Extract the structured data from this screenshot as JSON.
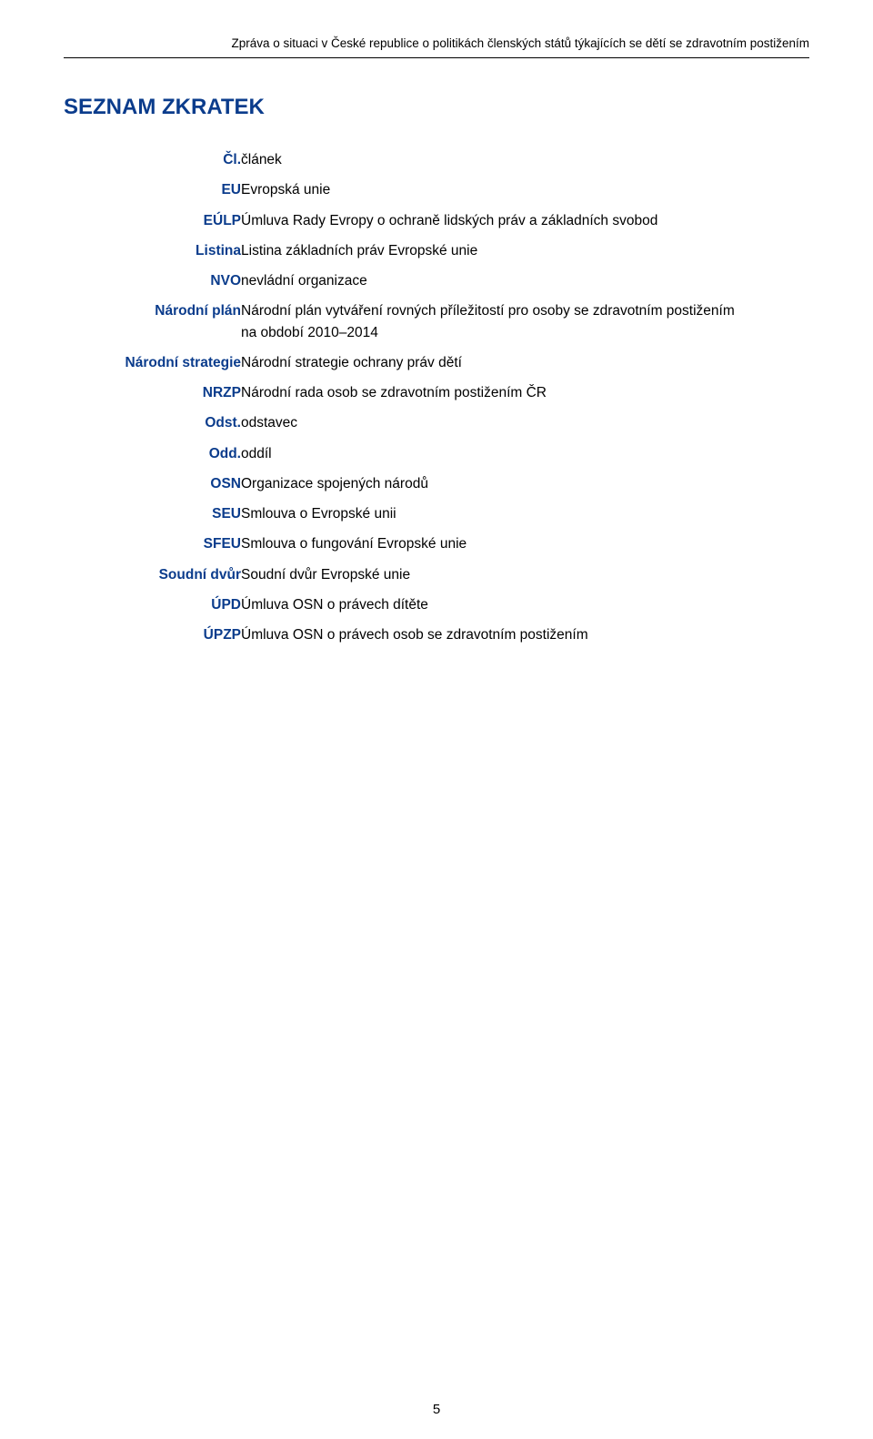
{
  "header": "Zpráva o situaci v České republice o politikách členských států týkajících se dětí se zdravotním postižením",
  "title": "SEZNAM ZKRATEK",
  "rows": [
    {
      "term": "Čl.",
      "def": "článek"
    },
    {
      "term": "EU",
      "def": "Evropská unie"
    },
    {
      "term": "EÚLP",
      "def": "Úmluva Rady Evropy o ochraně lidských práv a základních svobod"
    },
    {
      "term": "Listina",
      "def": "Listina základních práv Evropské unie"
    },
    {
      "term": "NVO",
      "def": "nevládní organizace"
    },
    {
      "term": "Národní plán",
      "def": "Národní plán vytváření rovných příležitostí pro osoby se zdravotním postižením na období 2010–2014"
    },
    {
      "term": "Národní strategie",
      "def": "Národní strategie ochrany práv dětí"
    },
    {
      "term": "NRZP",
      "def": "Národní rada osob se zdravotním postižením ČR"
    },
    {
      "term": "Odst.",
      "def": "odstavec"
    },
    {
      "term": "Odd.",
      "def": "oddíl"
    },
    {
      "term": "OSN",
      "def": "Organizace spojených národů"
    },
    {
      "term": "SEU",
      "def": "Smlouva o Evropské unii"
    },
    {
      "term": "SFEU",
      "def": "Smlouva o fungování Evropské unie"
    },
    {
      "term": "Soudní dvůr",
      "def": "Soudní dvůr Evropské unie"
    },
    {
      "term": "ÚPD",
      "def": "Úmluva OSN o právech dítěte"
    },
    {
      "term": "ÚPZP",
      "def": "Úmluva OSN o právech osob se zdravotním postižením"
    }
  ],
  "page_number": "5",
  "colors": {
    "heading": "#0b3c8c",
    "text": "#000000",
    "background": "#ffffff",
    "rule": "#000000"
  },
  "typography": {
    "body_font": "Verdana",
    "body_size_pt": 12,
    "title_size_pt": 18,
    "header_size_pt": 10
  }
}
